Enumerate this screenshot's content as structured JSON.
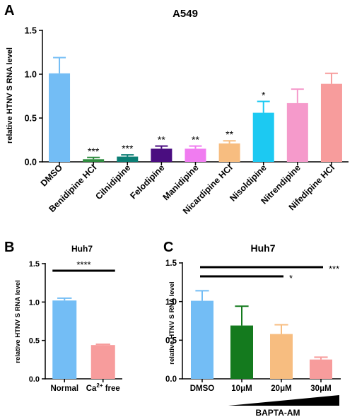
{
  "chart_data": [
    {
      "panel": "A",
      "type": "bar",
      "title": "A549",
      "ylabel": "relative HTNV S RNA level",
      "xlabel": "",
      "ylim": [
        0,
        1.5
      ],
      "yticks": [
        "0.0",
        "0.5",
        "1.0",
        "1.5"
      ],
      "categories": [
        "DMSO",
        "Benidipine HCl",
        "Cilnidipine",
        "Felodipine",
        "Manidipine",
        "Nicardipine HCl",
        "Nisoldipine",
        "Nitrendipine",
        "Nifedipine HCl"
      ],
      "values": [
        1.01,
        0.03,
        0.06,
        0.15,
        0.15,
        0.21,
        0.56,
        0.67,
        0.89
      ],
      "errors": [
        0.18,
        0.02,
        0.02,
        0.03,
        0.03,
        0.03,
        0.13,
        0.16,
        0.12
      ],
      "colors": [
        "#73bdf5",
        "#2e8b3e",
        "#0b7e74",
        "#4a0d80",
        "#f07cf0",
        "#f7bd80",
        "#1cc9f2",
        "#f59acb",
        "#f79c9c"
      ],
      "significance": [
        "",
        "***",
        "***",
        "**",
        "**",
        "**",
        "*",
        "",
        ""
      ],
      "grid": false
    },
    {
      "panel": "B",
      "type": "bar",
      "title": "Huh7",
      "ylabel": "relative HTNV S RNA level",
      "xlabel": "",
      "ylim": [
        0,
        1.5
      ],
      "yticks": [
        "0.0",
        "0.5",
        "1.0",
        "1.5"
      ],
      "categories": [
        "Normal",
        "Ca2+ free"
      ],
      "values": [
        1.02,
        0.44
      ],
      "errors": [
        0.03,
        0.01
      ],
      "colors": [
        "#73bdf5",
        "#f79c9c"
      ],
      "comparisons": [
        {
          "from": 0,
          "to": 1,
          "label": "****"
        }
      ],
      "grid": false
    },
    {
      "panel": "C",
      "type": "bar",
      "title": "Huh7",
      "ylabel": "relative HTNV S RNA level",
      "xlabel": "BAPTA-AM",
      "ylim": [
        0,
        1.5
      ],
      "yticks": [
        "0.0",
        "0.5",
        "1.0",
        "1.5"
      ],
      "categories": [
        "DMSO",
        "10μM",
        "20μM",
        "30μM"
      ],
      "values": [
        1.01,
        0.69,
        0.58,
        0.25
      ],
      "errors": [
        0.13,
        0.25,
        0.12,
        0.03
      ],
      "colors": [
        "#73bdf5",
        "#147a1e",
        "#f7bd80",
        "#f79c9c"
      ],
      "comparisons": [
        {
          "from": 0,
          "to": 3,
          "label": "***"
        },
        {
          "from": 0,
          "to": 2,
          "label": "*"
        }
      ],
      "grid": false
    }
  ]
}
